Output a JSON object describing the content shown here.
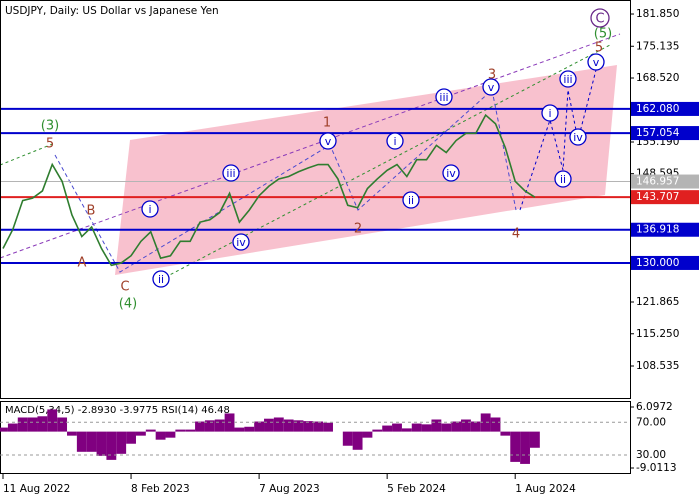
{
  "chart_data": [
    {
      "type": "line",
      "title": "USDJPY, Daily:  US Dollar vs Japanese Yen",
      "color": "#2f7d2f",
      "categories": [
        "11 Aug 2022",
        null,
        null,
        null,
        null,
        null,
        null,
        null,
        null,
        null,
        null,
        null,
        null,
        "8 Feb 2023",
        null,
        null,
        null,
        null,
        null,
        null,
        null,
        null,
        null,
        null,
        null,
        null,
        "7 Aug 2023",
        null,
        null,
        null,
        null,
        null,
        null,
        null,
        null,
        null,
        null,
        null,
        null,
        "5 Feb 2024",
        null,
        null,
        null,
        null,
        null,
        null,
        null,
        null,
        null,
        null,
        null,
        null,
        "1 Aug 2024",
        null,
        null
      ],
      "values": [
        133,
        137,
        143,
        143.5,
        145,
        150.5,
        147,
        140,
        135.5,
        137.5,
        133,
        129.5,
        130,
        131.5,
        134.5,
        136.5,
        131,
        131.5,
        134.5,
        134.5,
        138.5,
        139,
        140.5,
        144.5,
        138.5,
        141,
        144,
        146,
        147.5,
        148,
        149,
        149.8,
        150.5,
        150.5,
        147.5,
        142,
        141.5,
        145.5,
        147.5,
        149.3,
        150.5,
        148,
        151.5,
        151.5,
        154.5,
        153,
        155.5,
        157,
        157,
        160.8,
        159,
        154,
        147,
        145,
        143.7
      ],
      "ylim": [
        101.87,
        184.77
      ],
      "yticks": [
        {
          "value": 181.85,
          "label": "181.850"
        },
        {
          "value": 175.135,
          "label": "175.135"
        },
        {
          "value": 168.52,
          "label": "168.520"
        },
        {
          "value": 155.19,
          "label": "155.190"
        },
        {
          "value": 148.595,
          "label": "148.595"
        },
        {
          "value": 121.865,
          "label": "121.865"
        },
        {
          "value": 115.25,
          "label": "115.250"
        },
        {
          "value": 108.535,
          "label": "108.535"
        }
      ],
      "levels": [
        {
          "value": 162.08,
          "label": "162.080",
          "color": "#0000cc"
        },
        {
          "value": 157.054,
          "label": "157.054",
          "color": "#0000cc"
        },
        {
          "value": 146.957,
          "label": "146.957",
          "color": "#b4b4b4"
        },
        {
          "value": 143.707,
          "label": "143.707",
          "color": "#e02020"
        },
        {
          "value": 136.918,
          "label": "136.918",
          "color": "#0000cc"
        },
        {
          "value": 130,
          "label": "130.000",
          "color": "#0000cc"
        }
      ],
      "annotations": [
        "(3)",
        "5",
        "B",
        "A",
        "C",
        "(4)",
        "i",
        "ii",
        "iii",
        "iv",
        "v",
        "1",
        "2",
        "i",
        "ii",
        "iii",
        "iv",
        "v",
        "3",
        "4",
        "i",
        "ii",
        "iii",
        "iv",
        "v",
        "5",
        "(5)",
        "C"
      ]
    },
    {
      "type": "bar",
      "title": "MACD(5,34,5) -2.8930 -3.9775 RSI(14) 46.48",
      "color": "#800080",
      "values": [
        1,
        2,
        3.5,
        3.5,
        3.8,
        5.5,
        3.5,
        -1,
        -5,
        -5,
        -6,
        -7,
        -5.5,
        -3,
        -1,
        0.5,
        -2,
        -1.5,
        0.5,
        0.5,
        2.5,
        2.8,
        3,
        4.5,
        1,
        1.2,
        2.5,
        3.2,
        3.5,
        3,
        2.8,
        2.6,
        2.5,
        2.2,
        0,
        -3.5,
        -4.5,
        -1.5,
        0.5,
        1.5,
        2,
        0.8,
        2,
        1.8,
        3,
        2,
        2.5,
        3,
        2.5,
        4.5,
        3.5,
        -1,
        -7.5,
        -8,
        -4
      ],
      "ylim": [
        -9.0113,
        6.0972
      ],
      "yticks": [
        6.0972,
        -9.0113
      ],
      "y2lim": [
        8,
        96
      ],
      "y2ticks": [
        {
          "value": 70,
          "label": "70.00"
        },
        {
          "value": 30,
          "label": "30.00"
        }
      ]
    }
  ]
}
